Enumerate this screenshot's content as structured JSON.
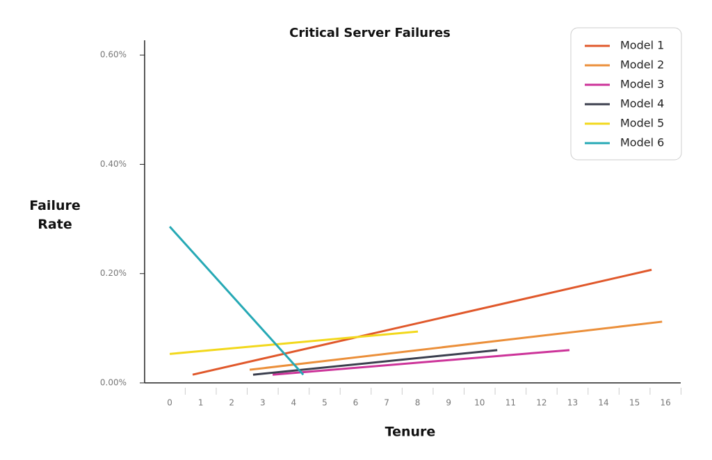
{
  "chart_data": {
    "type": "line",
    "title": "Critical Server Failures",
    "xlabel": "Tenure",
    "ylabel": "Failure Rate",
    "xlim": [
      -0.81,
      16.49
    ],
    "xticks": [
      0,
      1,
      2,
      3,
      4,
      5,
      6,
      7,
      8,
      9,
      10,
      11,
      12,
      13,
      14,
      15,
      16
    ],
    "ylim": [
      0,
      0.627
    ],
    "yticks": [
      {
        "value": 0,
        "label": "0.00%"
      },
      {
        "value": 0.2,
        "label": "0.20%"
      },
      {
        "value": 0.4,
        "label": "0.40%"
      },
      {
        "value": 0.6,
        "label": "0.60%"
      }
    ],
    "legend": "upper right",
    "series": [
      {
        "name": "Model 1",
        "color": "#e0582b",
        "x": [
          0.74,
          15.55
        ],
        "values": [
          0.015,
          0.207
        ]
      },
      {
        "name": "Model 2",
        "color": "#eb8f3a",
        "x": [
          2.58,
          15.89
        ],
        "values": [
          0.024,
          0.112
        ]
      },
      {
        "name": "Model 3",
        "color": "#cc3399",
        "x": [
          3.32,
          12.9
        ],
        "values": [
          0.015,
          0.06
        ]
      },
      {
        "name": "Model 4",
        "color": "#3b3f4e",
        "x": [
          2.69,
          10.57
        ],
        "values": [
          0.015,
          0.06
        ]
      },
      {
        "name": "Model 5",
        "color": "#f2d81c",
        "x": [
          0,
          8.01
        ],
        "values": [
          0.053,
          0.094
        ]
      },
      {
        "name": "Model 6",
        "color": "#26a9b5",
        "x": [
          0,
          4.31
        ],
        "values": [
          0.286,
          0.015
        ]
      }
    ]
  }
}
